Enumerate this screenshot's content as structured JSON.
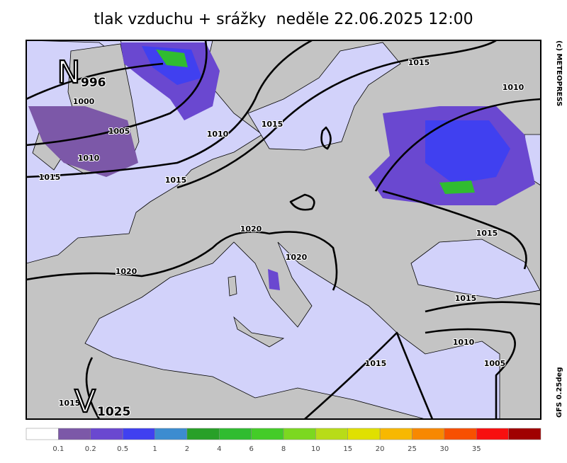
{
  "title": "tlak vzduchu + srážky  neděle 22.06.2025 12:00",
  "pressure_centers": [
    {
      "letter": "N",
      "value": 996
    },
    {
      "letter": "V",
      "value": 1025
    }
  ],
  "isobar_labels": [
    1015,
    1010,
    1000,
    1005,
    1010,
    1015,
    1010,
    1015,
    1015,
    1020,
    1020,
    1020,
    1015,
    1015,
    1010,
    1005,
    1015,
    1015
  ],
  "legend": {
    "labels": [
      0.1,
      0.2,
      0.5,
      1,
      2,
      4,
      6,
      8,
      10,
      15,
      20,
      25,
      30,
      35
    ],
    "colors": [
      "#ffffff",
      "#7c58a8",
      "#6a48d0",
      "#4040f0",
      "#3c8cd0",
      "#28a028",
      "#30bc30",
      "#44cc28",
      "#7cd820",
      "#b8dc18",
      "#e0e000",
      "#f8b800",
      "#f88800",
      "#f85000",
      "#f81010",
      "#a00000"
    ]
  },
  "credit": "(c) METEOPRESS",
  "model": "GFS 0.25deg"
}
